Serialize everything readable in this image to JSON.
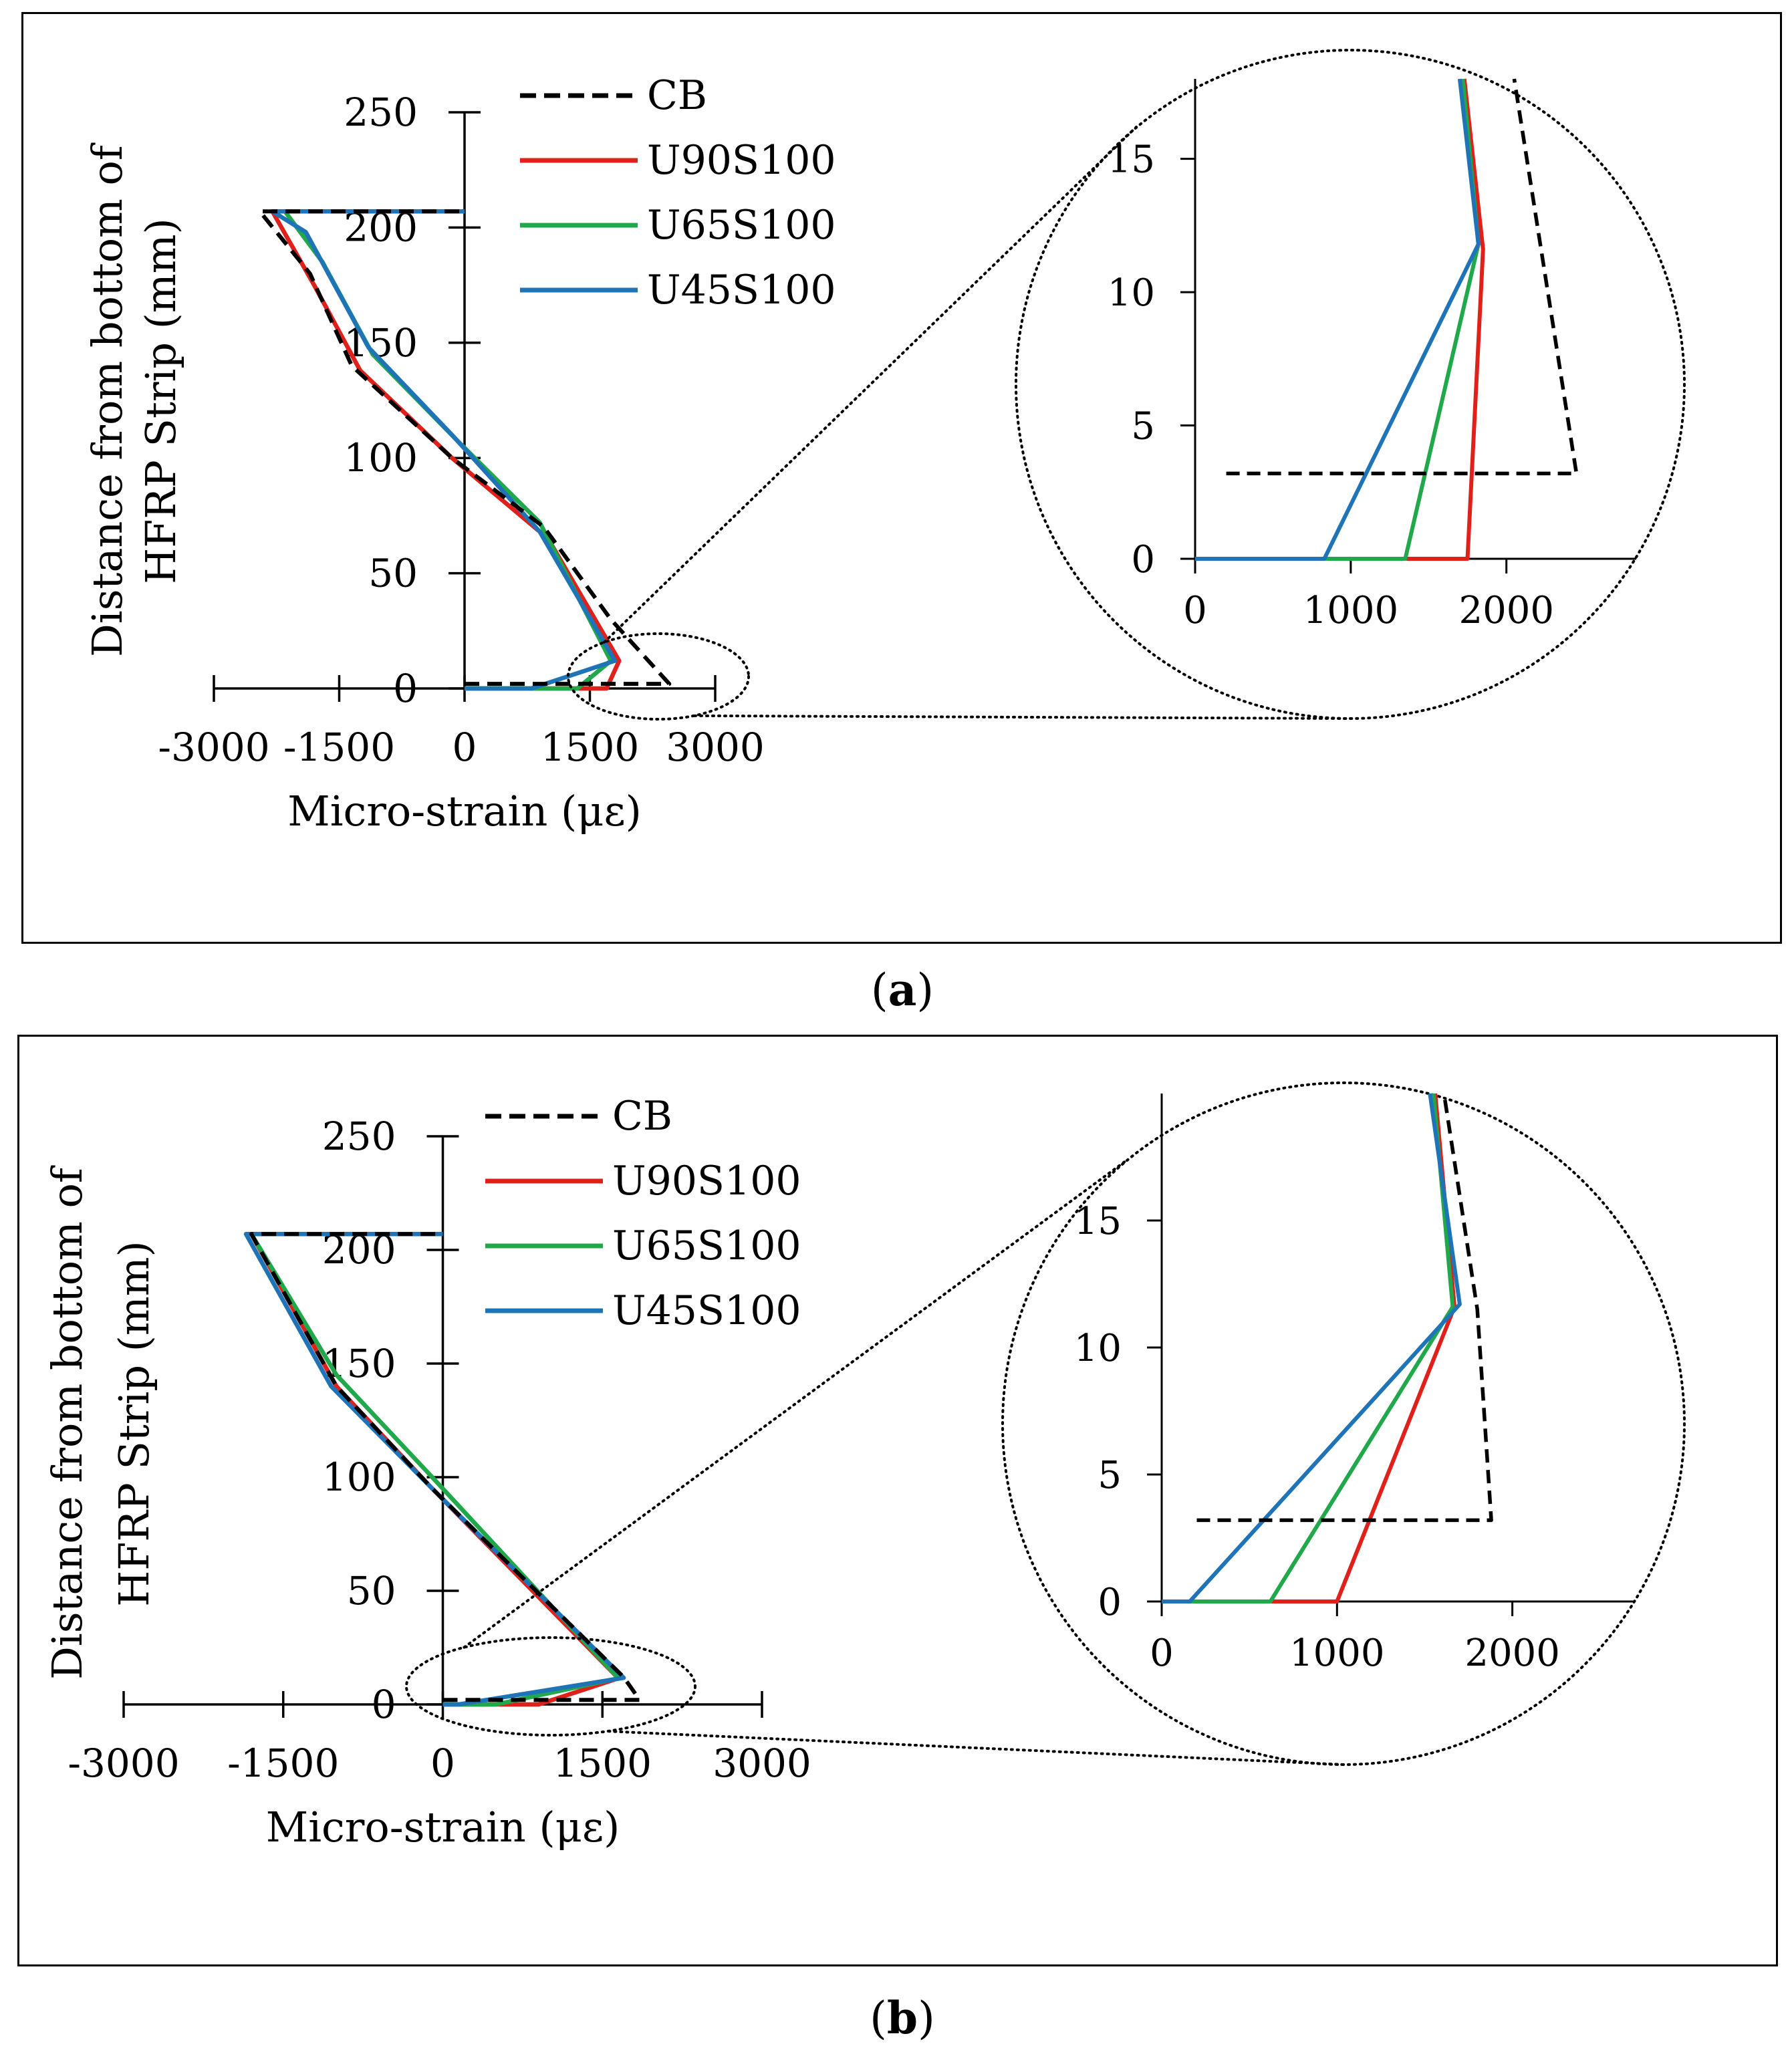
{
  "colors": {
    "CB": "#000000",
    "U90S100": "#e0201b",
    "U65S100": "#20a84a",
    "U45S100": "#1f74b8"
  },
  "panels": [
    {
      "id": "a",
      "caption_open": "(",
      "caption_letter": "a",
      "caption_close": ")",
      "chart_data": {
        "type": "line",
        "orientation": "horizontal-values",
        "xlabel": "Micro-strain (με)",
        "ylabel_line1": "Distance from bottom of",
        "ylabel_line2": "HFRP Strip (mm)",
        "xlim": [
          -3000,
          3000
        ],
        "ylim": [
          0,
          250
        ],
        "xticks": [
          -3000,
          -1500,
          0,
          1500,
          3000
        ],
        "yticks": [
          0,
          50,
          100,
          150,
          200,
          250
        ],
        "xtick_labels": [
          "-3000",
          "-1500",
          "0",
          "1500",
          "3000"
        ],
        "ytick_labels": [
          "0",
          "50",
          "100",
          "150",
          "200",
          "250"
        ],
        "legend": [
          "CB",
          "U90S100",
          "U65S100",
          "U45S100"
        ],
        "series": [
          {
            "name": "CB",
            "dashed": true,
            "points": [
              [
                0,
                2
              ],
              [
                2450,
                2
              ],
              [
                1750,
                30
              ],
              [
                950,
                70
              ],
              [
                -150,
                100
              ],
              [
                -1350,
                140
              ],
              [
                -1850,
                180
              ],
              [
                -2450,
                207
              ],
              [
                0,
                207
              ]
            ]
          },
          {
            "name": "U90S100",
            "dashed": false,
            "points": [
              [
                0,
                0
              ],
              [
                1700,
                0
              ],
              [
                1850,
                12
              ],
              [
                1000,
                65
              ],
              [
                -150,
                100
              ],
              [
                -1250,
                138
              ],
              [
                -1800,
                175
              ],
              [
                -2300,
                207
              ],
              [
                0,
                207
              ]
            ]
          },
          {
            "name": "U65S100",
            "dashed": false,
            "points": [
              [
                0,
                0
              ],
              [
                1350,
                0
              ],
              [
                1750,
                12
              ],
              [
                900,
                72
              ],
              [
                -100,
                108
              ],
              [
                -1100,
                145
              ],
              [
                -1700,
                185
              ],
              [
                -2150,
                207
              ],
              [
                0,
                207
              ]
            ]
          },
          {
            "name": "U45S100",
            "dashed": false,
            "points": [
              [
                0,
                0
              ],
              [
                800,
                0
              ],
              [
                1800,
                12
              ],
              [
                900,
                68
              ],
              [
                -150,
                110
              ],
              [
                -1150,
                148
              ],
              [
                -1900,
                198
              ],
              [
                -2300,
                207
              ],
              [
                0,
                207
              ]
            ]
          }
        ],
        "inset": {
          "xlim": [
            0,
            2800
          ],
          "ylim": [
            0,
            18
          ],
          "xticks": [
            0,
            1000,
            2000
          ],
          "yticks": [
            0,
            5,
            10,
            15
          ],
          "xtick_labels": [
            "0",
            "1000",
            "2000"
          ],
          "ytick_labels": [
            "0",
            "5",
            "10",
            "15"
          ],
          "series": [
            {
              "name": "CB",
              "dashed": true,
              "points": [
                [
                  200,
                  3.2
                ],
                [
                  2450,
                  3.2
                ],
                [
                  2050,
                  18.0
                ]
              ]
            },
            {
              "name": "U90S100",
              "dashed": false,
              "points": [
                [
                  0,
                  0
                ],
                [
                  1750,
                  0
                ],
                [
                  1850,
                  11.6
                ],
                [
                  1730,
                  18.0
                ]
              ]
            },
            {
              "name": "U65S100",
              "dashed": false,
              "points": [
                [
                  0,
                  0
                ],
                [
                  1350,
                  0
                ],
                [
                  1820,
                  11.8
                ],
                [
                  1720,
                  18.0
                ]
              ]
            },
            {
              "name": "U45S100",
              "dashed": false,
              "points": [
                [
                  0,
                  0
                ],
                [
                  830,
                  0
                ],
                [
                  1820,
                  11.8
                ],
                [
                  1700,
                  18.0
                ]
              ]
            }
          ]
        }
      }
    },
    {
      "id": "b",
      "caption_open": "(",
      "caption_letter": "b",
      "caption_close": ")",
      "chart_data": {
        "type": "line",
        "orientation": "horizontal-values",
        "xlabel": "Micro-strain (με)",
        "ylabel_line1": "Distance from bottom of",
        "ylabel_line2": "HFRP Strip (mm)",
        "xlim": [
          -3000,
          3000
        ],
        "ylim": [
          0,
          250
        ],
        "xticks": [
          -3000,
          -1500,
          0,
          1500,
          3000
        ],
        "yticks": [
          0,
          50,
          100,
          150,
          200,
          250
        ],
        "xtick_labels": [
          "-3000",
          "-1500",
          "0",
          "1500",
          "3000"
        ],
        "ytick_labels": [
          "0",
          "50",
          "100",
          "150",
          "200",
          "250"
        ],
        "legend": [
          "CB",
          "U90S100",
          "U65S100",
          "U45S100"
        ],
        "series": [
          {
            "name": "CB",
            "dashed": true,
            "points": [
              [
                0,
                2
              ],
              [
                1850,
                2
              ],
              [
                1700,
                12
              ],
              [
                -100,
                95
              ],
              [
                -1000,
                140
              ],
              [
                -1800,
                207
              ],
              [
                0,
                207
              ]
            ]
          },
          {
            "name": "U90S100",
            "dashed": false,
            "points": [
              [
                0,
                0
              ],
              [
                900,
                0
              ],
              [
                1650,
                11.5
              ],
              [
                -100,
                95
              ],
              [
                -1000,
                140
              ],
              [
                -1800,
                207
              ],
              [
                0,
                207
              ]
            ]
          },
          {
            "name": "U65S100",
            "dashed": false,
            "points": [
              [
                0,
                0
              ],
              [
                500,
                0
              ],
              [
                1650,
                11.5
              ],
              [
                -100,
                100
              ],
              [
                -1000,
                145
              ],
              [
                -1800,
                207
              ],
              [
                0,
                207
              ]
            ]
          },
          {
            "name": "U45S100",
            "dashed": false,
            "points": [
              [
                0,
                0
              ],
              [
                150,
                0
              ],
              [
                1700,
                11.7
              ],
              [
                -100,
                95
              ],
              [
                -1050,
                140
              ],
              [
                -1850,
                207
              ],
              [
                0,
                207
              ]
            ]
          }
        ],
        "inset": {
          "xlim": [
            0,
            2600
          ],
          "ylim": [
            0,
            20
          ],
          "xticks": [
            0,
            1000,
            2000
          ],
          "yticks": [
            0,
            5,
            10,
            15
          ],
          "xtick_labels": [
            "0",
            "1000",
            "2000"
          ],
          "ytick_labels": [
            "0",
            "5",
            "10",
            "15"
          ],
          "series": [
            {
              "name": "CB",
              "dashed": true,
              "points": [
                [
                  200,
                  3.2
                ],
                [
                  1880,
                  3.2
                ],
                [
                  1800,
                  11.5
                ],
                [
                  1610,
                  20.0
                ]
              ]
            },
            {
              "name": "U90S100",
              "dashed": false,
              "points": [
                [
                  0,
                  0
                ],
                [
                  1000,
                  0
                ],
                [
                  1670,
                  11.6
                ],
                [
                  1560,
                  20.0
                ]
              ]
            },
            {
              "name": "U65S100",
              "dashed": false,
              "points": [
                [
                  0,
                  0
                ],
                [
                  620,
                  0
                ],
                [
                  1660,
                  11.6
                ],
                [
                  1550,
                  20.0
                ]
              ]
            },
            {
              "name": "U45S100",
              "dashed": false,
              "points": [
                [
                  0,
                  0
                ],
                [
                  160,
                  0
                ],
                [
                  1700,
                  11.7
                ],
                [
                  1530,
                  20.0
                ]
              ]
            }
          ]
        }
      }
    }
  ]
}
